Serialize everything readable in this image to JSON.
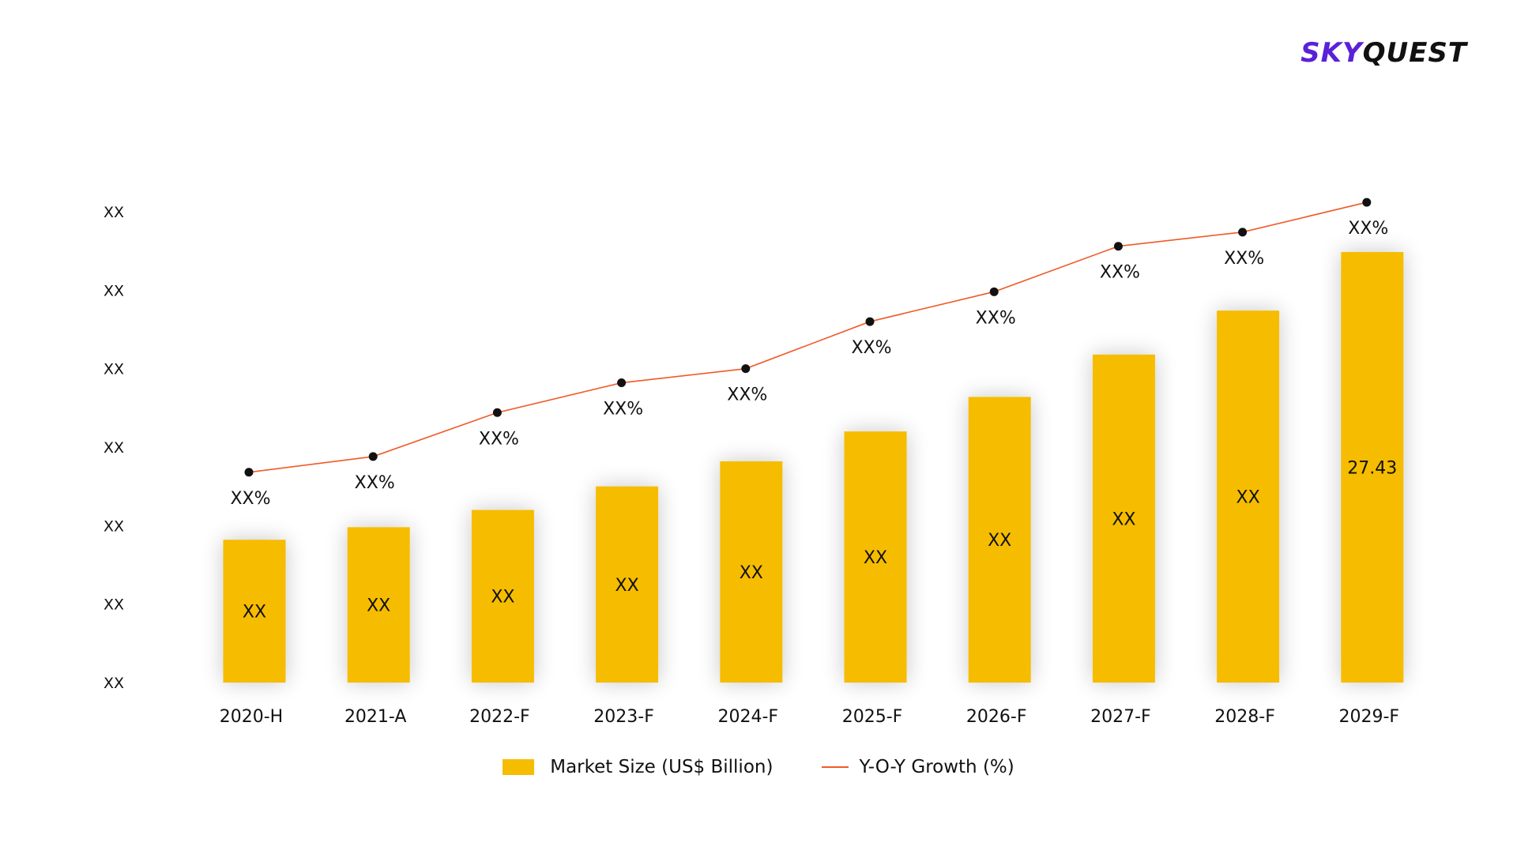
{
  "brand": {
    "logo_part1": "SKY",
    "logo_part2": "QUEST"
  },
  "chart_data": {
    "type": "bar",
    "categories": [
      "2020-H",
      "2021-A",
      "2022-F",
      "2023-F",
      "2024-F",
      "2025-F",
      "2026-F",
      "2027-F",
      "2028-F",
      "2029-F"
    ],
    "series": [
      {
        "name": "Market Size (US$ Billion)",
        "type": "bar",
        "values": [
          9.1,
          9.9,
          11.0,
          12.5,
          14.1,
          16.0,
          18.2,
          20.9,
          23.7,
          27.43
        ],
        "labels": [
          "XX",
          "XX",
          "XX",
          "XX",
          "XX",
          "XX",
          "XX",
          "XX",
          "XX",
          "27.43"
        ],
        "color": "#F6BC00"
      },
      {
        "name": "Y-O-Y Growth (%)",
        "type": "line",
        "values": [
          13.4,
          14.4,
          17.2,
          19.1,
          20.0,
          23.0,
          24.9,
          27.8,
          28.7,
          30.6
        ],
        "labels": [
          "XX%",
          "XX%",
          "XX%",
          "XX%",
          "XX%",
          "XX%",
          "XX%",
          "XX%",
          "XX%",
          "XX%"
        ],
        "color": "#F05A28",
        "marker_color": "#111111"
      }
    ],
    "ylim": [
      0,
      30
    ],
    "y_tick_labels": [
      "XX",
      "XX",
      "XX",
      "XX",
      "XX",
      "XX",
      "XX"
    ],
    "legend_position": "bottom-center",
    "grid": false
  }
}
